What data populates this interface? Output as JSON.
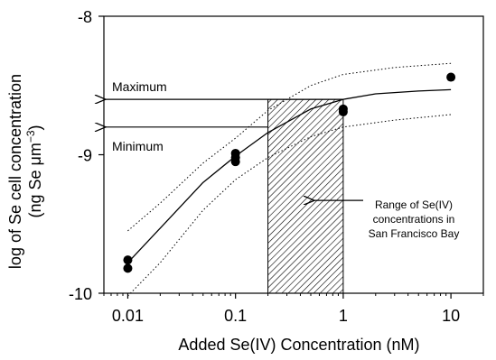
{
  "chart_data": {
    "type": "scatter",
    "title": "",
    "xlabel": "Added Se(IV) Concentration (nM)",
    "ylabel": "log of Se cell concentration",
    "ylabel_unit_prefix": "(ng Se μm",
    "ylabel_unit_exp": "−3",
    "ylabel_unit_suffix": ")",
    "x_scale": "log",
    "xlim": [
      0.006,
      20
    ],
    "ylim": [
      -10,
      -8
    ],
    "x_ticks": [
      0.01,
      0.1,
      1,
      10
    ],
    "x_tick_labels": [
      "0.01",
      "0.1",
      "1",
      "10"
    ],
    "y_ticks": [
      -10,
      -9,
      -8
    ],
    "y_tick_labels": [
      "-10",
      "-9",
      "-8"
    ],
    "grid": false,
    "series": [
      {
        "kind": "points",
        "points": [
          {
            "x": 0.01,
            "y": -9.76
          },
          {
            "x": 0.01,
            "y": -9.82
          },
          {
            "x": 0.1,
            "y": -8.99
          },
          {
            "x": 0.1,
            "y": -9.02
          },
          {
            "x": 0.1,
            "y": -9.05
          },
          {
            "x": 1,
            "y": -8.67
          },
          {
            "x": 1,
            "y": -8.69
          },
          {
            "x": 10,
            "y": -8.44
          }
        ]
      },
      {
        "kind": "fit",
        "points": [
          {
            "x": 0.01,
            "y": -9.78
          },
          {
            "x": 0.02,
            "y": -9.53
          },
          {
            "x": 0.05,
            "y": -9.2
          },
          {
            "x": 0.1,
            "y": -9.01
          },
          {
            "x": 0.2,
            "y": -8.84
          },
          {
            "x": 0.5,
            "y": -8.67
          },
          {
            "x": 1,
            "y": -8.6
          },
          {
            "x": 2,
            "y": -8.56
          },
          {
            "x": 5,
            "y": -8.54
          },
          {
            "x": 10,
            "y": -8.53
          }
        ]
      },
      {
        "kind": "upper-bound",
        "points": [
          {
            "x": 0.01,
            "y": -9.55
          },
          {
            "x": 0.02,
            "y": -9.35
          },
          {
            "x": 0.05,
            "y": -9.06
          },
          {
            "x": 0.1,
            "y": -8.88
          },
          {
            "x": 0.2,
            "y": -8.68
          },
          {
            "x": 0.5,
            "y": -8.5
          },
          {
            "x": 1,
            "y": -8.42
          },
          {
            "x": 3,
            "y": -8.37
          },
          {
            "x": 10,
            "y": -8.34
          }
        ]
      },
      {
        "kind": "lower-bound",
        "points": [
          {
            "x": 0.01,
            "y": -10.02
          },
          {
            "x": 0.02,
            "y": -9.78
          },
          {
            "x": 0.05,
            "y": -9.4
          },
          {
            "x": 0.1,
            "y": -9.18
          },
          {
            "x": 0.2,
            "y": -9.02
          },
          {
            "x": 0.5,
            "y": -8.87
          },
          {
            "x": 1,
            "y": -8.8
          },
          {
            "x": 3,
            "y": -8.75
          },
          {
            "x": 10,
            "y": -8.71
          }
        ]
      }
    ],
    "shaded_region": {
      "x_from": 0.2,
      "x_to": 1,
      "fill": "hatched"
    },
    "annotations": {
      "maximum": {
        "label": "Maximum",
        "y": -8.6,
        "x_from": 1
      },
      "minimum": {
        "label": "Minimum",
        "y": -8.8,
        "x_from": 0.2
      },
      "range": {
        "lines": [
          "Range of Se(IV)",
          "concentrations in",
          "San Francisco Bay"
        ],
        "points_to_x": 0.5,
        "points_to_y": -9.33
      }
    }
  }
}
